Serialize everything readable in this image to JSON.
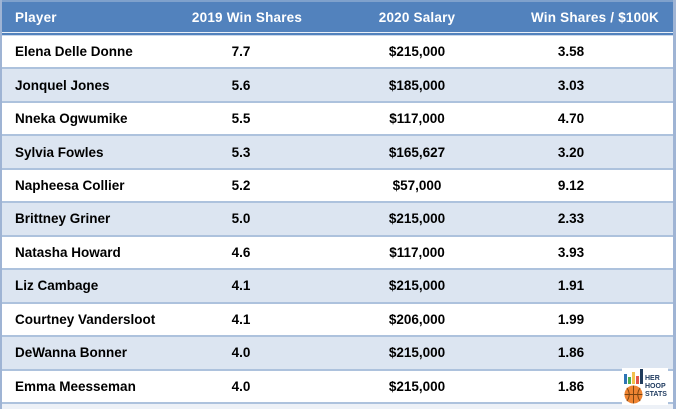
{
  "table": {
    "headers": {
      "player": "Player",
      "win_shares": "2019 Win Shares",
      "salary": "2020 Salary",
      "ratio": "Win Shares / $100K"
    },
    "rows": [
      {
        "player": "Elena Delle Donne",
        "win_shares": "7.7",
        "salary": "$215,000",
        "ratio": "3.58"
      },
      {
        "player": "Jonquel Jones",
        "win_shares": "5.6",
        "salary": "$185,000",
        "ratio": "3.03"
      },
      {
        "player": "Nneka Ogwumike",
        "win_shares": "5.5",
        "salary": "$117,000",
        "ratio": "4.70"
      },
      {
        "player": "Sylvia Fowles",
        "win_shares": "5.3",
        "salary": "$165,627",
        "ratio": "3.20"
      },
      {
        "player": "Napheesa Collier",
        "win_shares": "5.2",
        "salary": "$57,000",
        "ratio": "9.12"
      },
      {
        "player": "Brittney Griner",
        "win_shares": "5.0",
        "salary": "$215,000",
        "ratio": "2.33"
      },
      {
        "player": "Natasha Howard",
        "win_shares": "4.6",
        "salary": "$117,000",
        "ratio": "3.93"
      },
      {
        "player": "Liz Cambage",
        "win_shares": "4.1",
        "salary": "$215,000",
        "ratio": "1.91"
      },
      {
        "player": "Courtney Vandersloot",
        "win_shares": "4.1",
        "salary": "$206,000",
        "ratio": "1.99"
      },
      {
        "player": "DeWanna Bonner",
        "win_shares": "4.0",
        "salary": "$215,000",
        "ratio": "1.86"
      },
      {
        "player": "Emma Meesseman",
        "win_shares": "4.0",
        "salary": "$215,000",
        "ratio": "1.86"
      }
    ]
  },
  "colors": {
    "header_bg": "#5282BD",
    "row_alt": "#DCE5F1",
    "row_white": "#FFFFFF",
    "separator": "#ADC2DD",
    "outer_border": "#9FB4D4",
    "header_text": "#FFFFFF",
    "body_text": "#000000",
    "logo_navy": "#1E3A5F",
    "basketball_orange": "#EF8432"
  },
  "logo": {
    "lines": [
      "HER",
      "HOOP",
      "STATS"
    ],
    "bars": [
      {
        "name": "bar-blue",
        "color": "#2E75B6",
        "height": 10
      },
      {
        "name": "bar-green",
        "color": "#4CAF50",
        "height": 7
      },
      {
        "name": "bar-yellow",
        "color": "#F2C14E",
        "height": 12
      },
      {
        "name": "bar-red",
        "color": "#E25549",
        "height": 8
      },
      {
        "name": "bar-navy",
        "color": "#1F3B5C",
        "height": 15
      }
    ]
  }
}
